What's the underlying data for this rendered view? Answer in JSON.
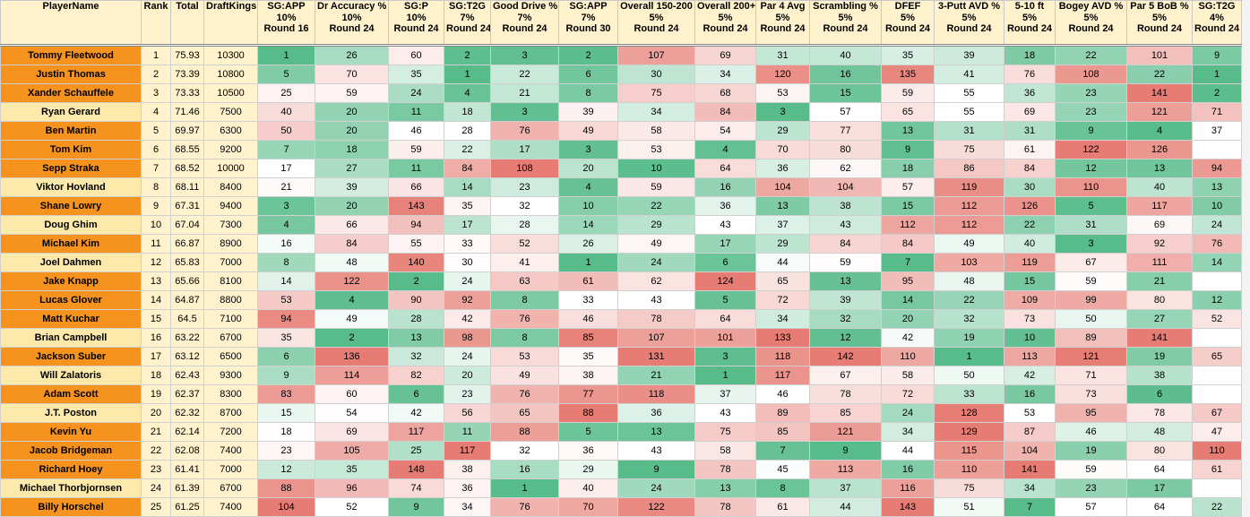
{
  "table": {
    "columns": [
      {
        "lines": [
          "PlayerName"
        ]
      },
      {
        "lines": [
          "Rank"
        ]
      },
      {
        "lines": [
          "Total"
        ]
      },
      {
        "lines": [
          "DraftKings"
        ]
      },
      {
        "lines": [
          "SG:APP",
          "10%",
          "Round 16"
        ]
      },
      {
        "lines": [
          "Dr Accuracy %",
          "10%",
          "Round 24"
        ]
      },
      {
        "lines": [
          "SG:P",
          "10%",
          "Round 24"
        ]
      },
      {
        "lines": [
          "SG:T2G",
          "7%",
          "Round 24"
        ]
      },
      {
        "lines": [
          "Good Drive %",
          "7%",
          "Round 24"
        ]
      },
      {
        "lines": [
          "SG:APP",
          "7%",
          "Round 30"
        ]
      },
      {
        "lines": [
          "Overall 150-200",
          "5%",
          "Round 24"
        ]
      },
      {
        "lines": [
          "Overall 200+",
          "5%",
          "Round 24"
        ]
      },
      {
        "lines": [
          "Par 4 Avg",
          "5%",
          "Round 24"
        ]
      },
      {
        "lines": [
          "Scrambling %",
          "5%",
          "Round 24"
        ]
      },
      {
        "lines": [
          "DFEF",
          "5%",
          "Round 24"
        ]
      },
      {
        "lines": [
          "3-Putt AVD %",
          "5%",
          "Round 24"
        ]
      },
      {
        "lines": [
          "5-10 ft",
          "5%",
          "Round 24"
        ]
      },
      {
        "lines": [
          "Bogey AVD %",
          "5%",
          "Round 24"
        ]
      },
      {
        "lines": [
          "Par 5 BoB %",
          "5%",
          "Round 24"
        ]
      },
      {
        "lines": [
          "SG:T2G",
          "4%",
          "Round 24"
        ]
      }
    ],
    "rows": [
      {
        "highlight": true,
        "cells": [
          "Tommy Fleetwood",
          1,
          75.93,
          10300,
          1,
          26,
          60,
          2,
          3,
          2,
          107,
          69,
          31,
          40,
          35,
          39,
          18,
          22,
          101,
          9
        ]
      },
      {
        "highlight": true,
        "cells": [
          "Justin Thomas",
          2,
          73.39,
          10800,
          5,
          70,
          35,
          1,
          22,
          6,
          30,
          34,
          120,
          16,
          135,
          41,
          76,
          108,
          22,
          1
        ]
      },
      {
        "highlight": true,
        "cells": [
          "Xander Schauffele",
          3,
          73.33,
          10500,
          25,
          59,
          24,
          4,
          21,
          8,
          75,
          68,
          53,
          15,
          59,
          55,
          36,
          23,
          141,
          2
        ]
      },
      {
        "highlight": false,
        "cells": [
          "Ryan Gerard",
          4,
          71.46,
          7500,
          40,
          20,
          11,
          18,
          3,
          39,
          34,
          84,
          3,
          57,
          65,
          55,
          69,
          23,
          121,
          71
        ]
      },
      {
        "highlight": true,
        "cells": [
          "Ben Martin",
          5,
          69.97,
          6300,
          50,
          20,
          46,
          28,
          76,
          49,
          58,
          54,
          29,
          77,
          13,
          31,
          31,
          9,
          4,
          37
        ]
      },
      {
        "highlight": true,
        "cells": [
          "Tom Kim",
          6,
          68.55,
          9200,
          7,
          18,
          59,
          22,
          17,
          3,
          53,
          4,
          70,
          80,
          9,
          75,
          61,
          122,
          126,
          null
        ]
      },
      {
        "highlight": true,
        "cells": [
          "Sepp Straka",
          7,
          68.52,
          10000,
          17,
          27,
          11,
          84,
          108,
          20,
          10,
          64,
          36,
          62,
          18,
          86,
          84,
          12,
          13,
          94
        ]
      },
      {
        "highlight": false,
        "cells": [
          "Viktor Hovland",
          8,
          68.11,
          8400,
          21,
          39,
          66,
          14,
          23,
          4,
          59,
          16,
          104,
          104,
          57,
          119,
          30,
          110,
          40,
          13
        ]
      },
      {
        "highlight": true,
        "cells": [
          "Shane Lowry",
          9,
          67.31,
          9400,
          3,
          20,
          143,
          35,
          32,
          10,
          22,
          36,
          13,
          38,
          15,
          112,
          126,
          5,
          117,
          10
        ]
      },
      {
        "highlight": false,
        "cells": [
          "Doug Ghim",
          10,
          67.04,
          7300,
          4,
          66,
          94,
          17,
          28,
          14,
          29,
          43,
          37,
          43,
          112,
          112,
          22,
          31,
          69,
          24
        ]
      },
      {
        "highlight": true,
        "cells": [
          "Michael Kim",
          11,
          66.87,
          8900,
          16,
          84,
          55,
          33,
          52,
          26,
          49,
          17,
          29,
          84,
          84,
          49,
          40,
          3,
          92,
          76
        ]
      },
      {
        "highlight": false,
        "cells": [
          "Joel Dahmen",
          12,
          65.83,
          7000,
          8,
          48,
          140,
          30,
          41,
          1,
          24,
          6,
          44,
          59,
          7,
          103,
          119,
          67,
          111,
          14
        ]
      },
      {
        "highlight": true,
        "cells": [
          "Jake Knapp",
          13,
          65.66,
          8100,
          14,
          122,
          2,
          24,
          63,
          61,
          62,
          124,
          65,
          13,
          95,
          48,
          15,
          59,
          21,
          null
        ]
      },
      {
        "highlight": true,
        "cells": [
          "Lucas Glover",
          14,
          64.87,
          8800,
          53,
          4,
          90,
          92,
          8,
          33,
          43,
          5,
          72,
          39,
          14,
          22,
          109,
          99,
          80,
          12
        ]
      },
      {
        "highlight": true,
        "cells": [
          "Matt Kuchar",
          15,
          64.5,
          7100,
          94,
          49,
          28,
          42,
          76,
          46,
          78,
          64,
          34,
          32,
          20,
          32,
          73,
          50,
          27,
          52
        ]
      },
      {
        "highlight": false,
        "cells": [
          "Brian Campbell",
          16,
          63.22,
          6700,
          35,
          2,
          13,
          98,
          8,
          85,
          107,
          101,
          133,
          12,
          42,
          19,
          10,
          89,
          141,
          null
        ]
      },
      {
        "highlight": true,
        "cells": [
          "Jackson Suber",
          17,
          63.12,
          6500,
          6,
          136,
          32,
          24,
          53,
          35,
          131,
          3,
          118,
          142,
          110,
          1,
          113,
          121,
          19,
          65
        ]
      },
      {
        "highlight": false,
        "cells": [
          "Will Zalatoris",
          18,
          62.43,
          9300,
          9,
          114,
          82,
          20,
          49,
          38,
          21,
          1,
          117,
          67,
          58,
          50,
          42,
          71,
          38,
          null
        ]
      },
      {
        "highlight": true,
        "cells": [
          "Adam Scott",
          19,
          62.37,
          8300,
          83,
          60,
          6,
          23,
          76,
          77,
          118,
          37,
          46,
          78,
          72,
          33,
          16,
          73,
          6,
          null
        ]
      },
      {
        "highlight": false,
        "cells": [
          "J.T. Poston",
          20,
          62.32,
          8700,
          15,
          54,
          42,
          56,
          65,
          88,
          36,
          43,
          89,
          85,
          24,
          128,
          53,
          95,
          78,
          67
        ]
      },
      {
        "highlight": true,
        "cells": [
          "Kevin Yu",
          21,
          62.14,
          7200,
          18,
          69,
          117,
          11,
          88,
          5,
          13,
          75,
          85,
          121,
          34,
          129,
          87,
          46,
          48,
          47
        ]
      },
      {
        "highlight": true,
        "cells": [
          "Jacob Bridgeman",
          22,
          62.08,
          7400,
          23,
          105,
          25,
          117,
          32,
          36,
          43,
          58,
          7,
          9,
          44,
          115,
          104,
          19,
          80,
          110
        ]
      },
      {
        "highlight": true,
        "cells": [
          "Richard Hoey",
          23,
          61.41,
          7000,
          12,
          35,
          148,
          38,
          16,
          29,
          9,
          78,
          45,
          113,
          16,
          110,
          141,
          59,
          64,
          61
        ]
      },
      {
        "highlight": false,
        "cells": [
          "Michael Thorbjornsen",
          24,
          61.39,
          6700,
          88,
          96,
          74,
          36,
          1,
          40,
          24,
          13,
          8,
          37,
          116,
          75,
          34,
          23,
          17,
          null
        ]
      },
      {
        "highlight": true,
        "cells": [
          "Billy Horschel",
          25,
          61.25,
          7400,
          104,
          52,
          9,
          34,
          76,
          70,
          122,
          78,
          61,
          44,
          143,
          51,
          7,
          57,
          64,
          22
        ]
      }
    ]
  }
}
